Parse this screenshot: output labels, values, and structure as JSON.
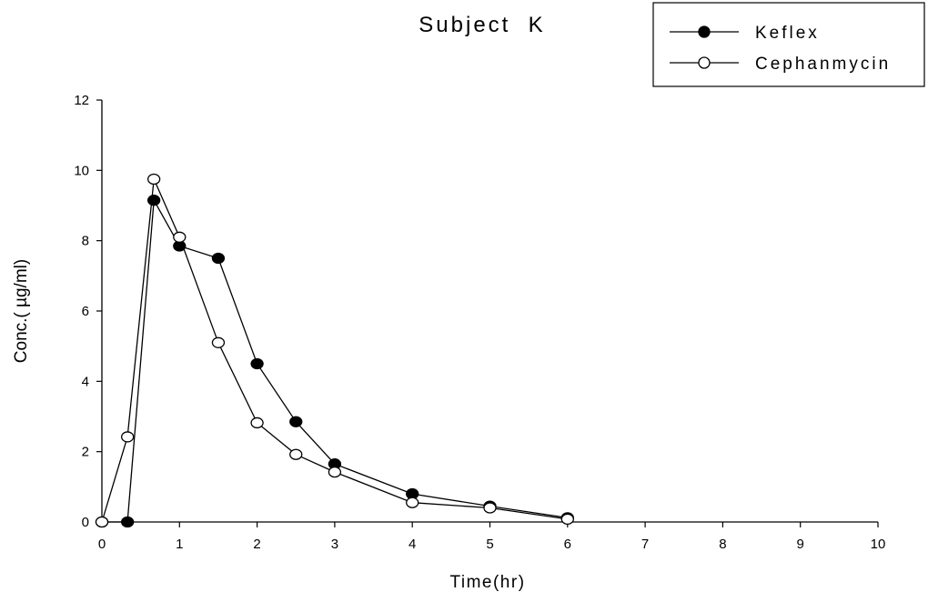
{
  "chart_data": {
    "type": "line",
    "title": "Subject  K",
    "xlabel": "Time(hr)",
    "ylabel": "Conc.( µg/ml)",
    "xlim": [
      0,
      10
    ],
    "ylim": [
      0,
      12
    ],
    "x_ticks": [
      "0",
      "1",
      "2",
      "3",
      "4",
      "5",
      "6",
      "7",
      "8",
      "9",
      "10"
    ],
    "y_ticks": [
      "0",
      "2",
      "4",
      "6",
      "8",
      "10",
      "12"
    ],
    "grid": false,
    "legend_position": "top-right",
    "series": [
      {
        "name": "Keflex",
        "marker": "filled-circle",
        "color": "#000000",
        "x": [
          0,
          0.33,
          0.67,
          1,
          1.5,
          2,
          2.5,
          3,
          4,
          5,
          6
        ],
        "y": [
          0,
          0,
          9.15,
          7.85,
          7.5,
          4.5,
          2.85,
          1.65,
          0.8,
          0.45,
          0.12
        ]
      },
      {
        "name": "Cephanmycin",
        "marker": "open-circle",
        "color": "#000000",
        "x": [
          0,
          0.33,
          0.67,
          1,
          1.5,
          2,
          2.5,
          3,
          4,
          5,
          6
        ],
        "y": [
          0,
          2.42,
          9.75,
          8.1,
          5.1,
          2.82,
          1.92,
          1.42,
          0.55,
          0.4,
          0.08
        ]
      }
    ]
  }
}
